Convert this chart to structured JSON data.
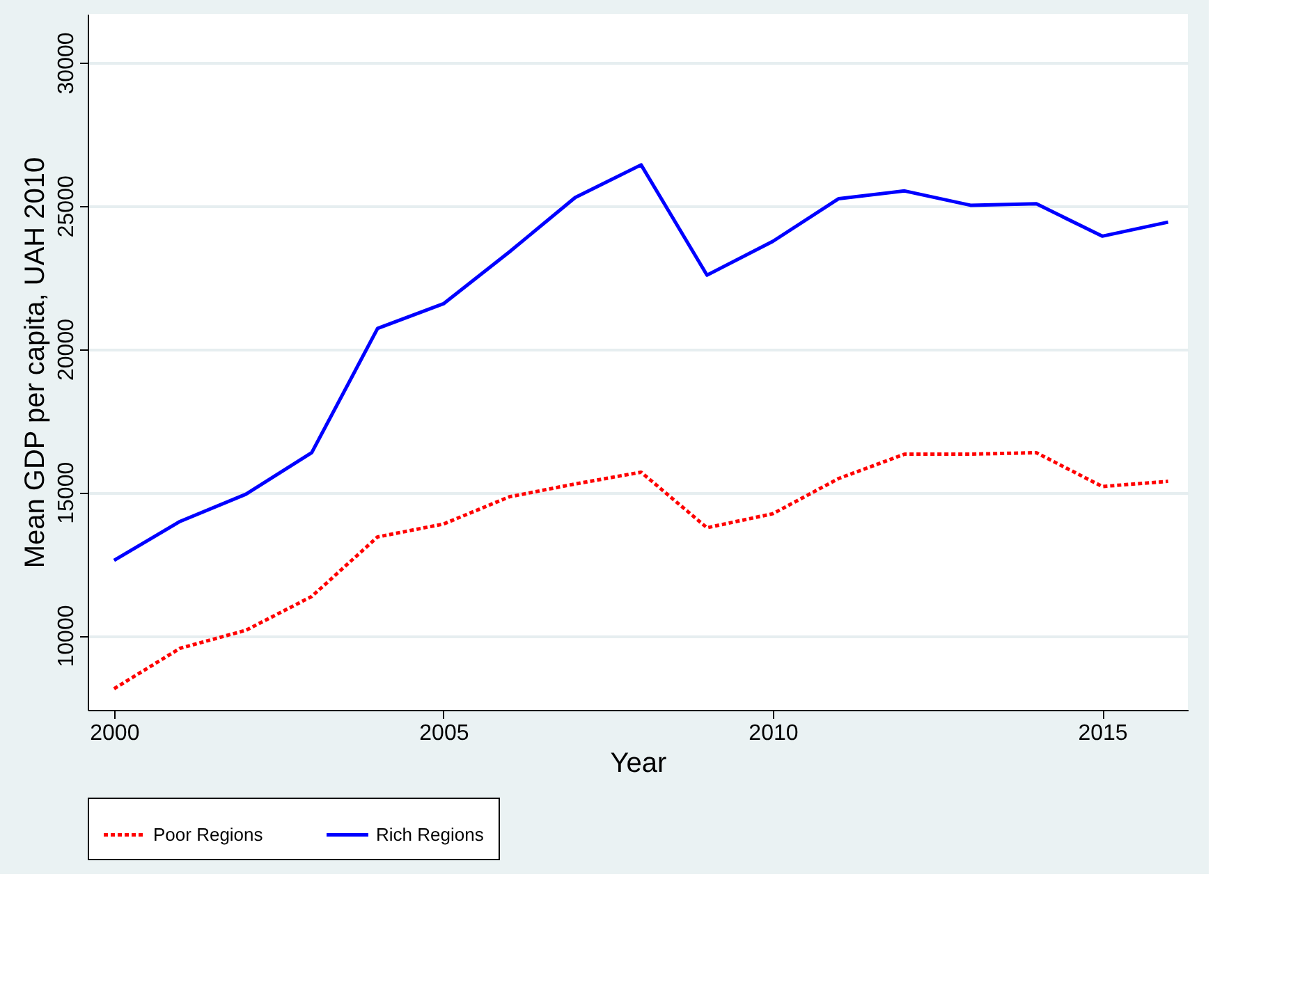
{
  "chart_data": {
    "type": "line",
    "xlabel": "Year",
    "ylabel": "Mean GDP per capita, UAH 2010",
    "x": [
      2000,
      2001,
      2002,
      2003,
      2004,
      2005,
      2006,
      2007,
      2008,
      2009,
      2010,
      2011,
      2012,
      2013,
      2014,
      2015,
      2016
    ],
    "series": [
      {
        "name": "Poor Regions",
        "color": "#ff0000",
        "line_style": "dotted",
        "values": [
          8140,
          9550,
          10180,
          11360,
          13440,
          13890,
          14840,
          15290,
          15700,
          13760,
          14250,
          15480,
          16330,
          16330,
          16380,
          15200,
          15380
        ]
      },
      {
        "name": "Rich Regions",
        "color": "#0000ff",
        "line_style": "solid",
        "values": [
          12620,
          13980,
          14930,
          16380,
          20720,
          21580,
          23390,
          25290,
          26430,
          22580,
          23760,
          25250,
          25520,
          25020,
          25070,
          23940,
          24430
        ]
      }
    ],
    "xlim": [
      1999.6,
      2016.3
    ],
    "xticks": [
      2000,
      2005,
      2010,
      2015
    ],
    "ylim": [
      7400,
      31700
    ],
    "yticks": [
      10000,
      15000,
      20000,
      25000,
      30000
    ],
    "grid": "y",
    "legend": "bottom",
    "marker": "none"
  }
}
